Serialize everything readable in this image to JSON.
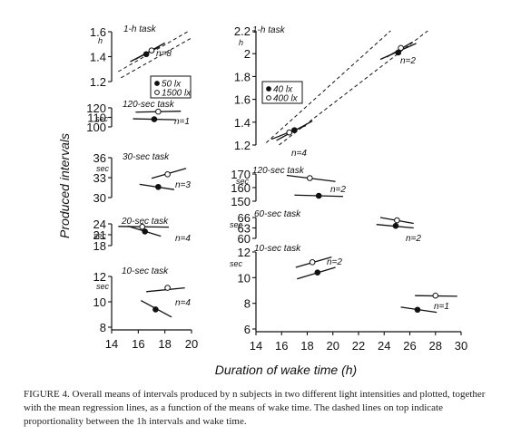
{
  "caption": "FIGURE 4. Overall means of intervals produced by n subjects in two different light intensities and plotted, together with the mean regression lines, as a function of the means of wake time. The dashed lines on top indicate proportionality between the 1h intervals and wake time.",
  "chart_data": {
    "type": "scatter",
    "ylabel": "Produced intervals",
    "xlabel": "Duration of wake time (h)",
    "colors": {
      "filled_marker": "#111111",
      "open_marker": "#ffffff",
      "line": "#111111"
    },
    "panels": [
      {
        "id": "left-1h",
        "label": "1-h task",
        "unit": "h",
        "n_label": "n=8",
        "xlim": [
          14,
          20
        ],
        "ylim": [
          1.2,
          1.6
        ],
        "yticks": [
          1.2,
          1.4,
          1.6
        ],
        "legend": [
          {
            "marker": "filled",
            "label": "50 lx"
          },
          {
            "marker": "open",
            "label": "1500 lx"
          }
        ],
        "series": [
          {
            "marker": "filled",
            "x": 16.6,
            "y": 1.42,
            "line": [
              [
                15.4,
                1.36
              ],
              [
                17.6,
                1.48
              ]
            ]
          },
          {
            "marker": "open",
            "x": 17.0,
            "y": 1.45,
            "line": [
              [
                15.8,
                1.38
              ],
              [
                18.0,
                1.51
              ]
            ]
          }
        ],
        "reference_lines": [
          [
            [
              14.5,
              1.28
            ],
            [
              19.7,
              1.6
            ]
          ],
          [
            [
              14.7,
              1.23
            ],
            [
              20.0,
              1.55
            ]
          ]
        ]
      },
      {
        "id": "left-120sec",
        "label": "120-sec task",
        "unit": "sec",
        "n_label": "n=1",
        "xlim": [
          14,
          20
        ],
        "ylim": [
          100,
          120
        ],
        "yticks": [
          100,
          110,
          120
        ],
        "series": [
          {
            "marker": "open",
            "x": 17.5,
            "y": 116,
            "line": [
              [
                15.8,
                115.5
              ],
              [
                19.2,
                116.5
              ]
            ]
          },
          {
            "marker": "filled",
            "x": 17.2,
            "y": 108,
            "line": [
              [
                15.6,
                108.5
              ],
              [
                18.8,
                107.5
              ]
            ]
          }
        ]
      },
      {
        "id": "left-30sec",
        "label": "30-sec task",
        "unit": "sec",
        "n_label": "n=3",
        "xlim": [
          14,
          20
        ],
        "ylim": [
          30,
          36
        ],
        "yticks": [
          30,
          33,
          36
        ],
        "series": [
          {
            "marker": "open",
            "x": 18.2,
            "y": 33.5,
            "line": [
              [
                17.0,
                32.9
              ],
              [
                19.6,
                34.4
              ]
            ]
          },
          {
            "marker": "filled",
            "x": 17.5,
            "y": 31.6,
            "line": [
              [
                16.1,
                32.0
              ],
              [
                18.7,
                31.2
              ]
            ]
          }
        ]
      },
      {
        "id": "left-20sec",
        "label": "20-sec task",
        "unit": "sec",
        "n_label": "n=4",
        "xlim": [
          14,
          20
        ],
        "ylim": [
          18,
          24
        ],
        "yticks": [
          18,
          21,
          24
        ],
        "series": [
          {
            "marker": "open",
            "x": 16.3,
            "y": 23.2,
            "line": [
              [
                14.5,
                23.3
              ],
              [
                18.3,
                23.1
              ]
            ]
          },
          {
            "marker": "filled",
            "x": 16.5,
            "y": 21.9,
            "line": [
              [
                15.2,
                23.4
              ],
              [
                17.7,
                20.6
              ]
            ]
          }
        ]
      },
      {
        "id": "left-10sec",
        "label": "10-sec task",
        "unit": "sec",
        "n_label": "n=4",
        "xlim": [
          14,
          20
        ],
        "ylim": [
          8,
          12
        ],
        "yticks": [
          8,
          10,
          12
        ],
        "series": [
          {
            "marker": "open",
            "x": 18.2,
            "y": 11.1,
            "line": [
              [
                16.6,
                10.8
              ],
              [
                19.5,
                11.1
              ]
            ]
          },
          {
            "marker": "filled",
            "x": 17.3,
            "y": 9.4,
            "line": [
              [
                16.2,
                10.1
              ],
              [
                18.5,
                8.8
              ]
            ]
          }
        ]
      },
      {
        "id": "right-1h",
        "label": "1-h task",
        "unit": "h",
        "n_label": "n=2",
        "xlim": [
          14,
          30
        ],
        "ylim": [
          1.2,
          2.2
        ],
        "yticks": [
          1.2,
          1.4,
          1.6,
          1.8,
          2.0,
          2.2
        ],
        "legend": [
          {
            "marker": "filled",
            "label": "40 lx"
          },
          {
            "marker": "open",
            "label": "400 lx"
          }
        ],
        "series": [
          {
            "marker": "filled",
            "x": 17.0,
            "y": 1.33,
            "line": [
              [
                15.6,
                1.24
              ],
              [
                18.4,
                1.41
              ]
            ]
          },
          {
            "marker": "open",
            "x": 16.6,
            "y": 1.31,
            "line": [
              [
                15.2,
                1.25
              ],
              [
                17.9,
                1.37
              ]
            ]
          },
          {
            "marker": "filled",
            "x": 25.1,
            "y": 2.01,
            "line": [
              [
                23.7,
                1.95
              ],
              [
                26.5,
                2.09
              ]
            ]
          },
          {
            "marker": "open",
            "x": 25.3,
            "y": 2.05,
            "line": [
              [
                24.2,
                1.97
              ],
              [
                26.2,
                2.1
              ]
            ]
          }
        ],
        "n_label_lower": "n=4",
        "reference_lines": [
          [
            [
              14.8,
              1.22
            ],
            [
              24.5,
              2.2
            ]
          ],
          [
            [
              15.8,
              1.2
            ],
            [
              27.4,
              2.2
            ]
          ]
        ]
      },
      {
        "id": "right-120sec",
        "label": "120-sec task",
        "unit": "sec",
        "n_label": "n=2",
        "xlim": [
          14,
          30
        ],
        "ylim": [
          150,
          170
        ],
        "yticks": [
          150,
          160,
          170
        ],
        "series": [
          {
            "marker": "open",
            "x": 18.2,
            "y": 167,
            "line": [
              [
                16.4,
                169
              ],
              [
                20.2,
                164.5
              ]
            ]
          },
          {
            "marker": "filled",
            "x": 18.9,
            "y": 154,
            "line": [
              [
                17.0,
                154.5
              ],
              [
                20.8,
                153.5
              ]
            ]
          }
        ]
      },
      {
        "id": "right-60sec",
        "label": "60-sec task",
        "unit": "sec",
        "n_label": "n=2",
        "xlim": [
          14,
          30
        ],
        "ylim": [
          60,
          66
        ],
        "yticks": [
          60,
          63,
          66
        ],
        "series": [
          {
            "marker": "open",
            "x": 25.0,
            "y": 65.2,
            "line": [
              [
                23.7,
                66.0
              ],
              [
                26.3,
                64.3
              ]
            ]
          },
          {
            "marker": "filled",
            "x": 24.9,
            "y": 63.6,
            "line": [
              [
                23.4,
                64.0
              ],
              [
                26.3,
                63.0
              ]
            ]
          }
        ]
      },
      {
        "id": "right-10sec",
        "label": "10-sec task",
        "unit": "sec",
        "n_label": "n=2",
        "xlim": [
          14,
          30
        ],
        "ylim": [
          6,
          12
        ],
        "yticks": [
          6,
          8,
          10,
          12
        ],
        "series": [
          {
            "marker": "open",
            "x": 18.4,
            "y": 11.2,
            "line": [
              [
                17.1,
                10.8
              ],
              [
                19.9,
                11.6
              ]
            ]
          },
          {
            "marker": "filled",
            "x": 18.8,
            "y": 10.4,
            "line": [
              [
                17.2,
                9.9
              ],
              [
                20.2,
                10.8
              ]
            ]
          },
          {
            "marker": "open",
            "x": 28.0,
            "y": 8.6,
            "line": [
              [
                26.4,
                8.6
              ],
              [
                29.7,
                8.55
              ]
            ]
          },
          {
            "marker": "filled",
            "x": 26.6,
            "y": 7.5,
            "line": [
              [
                25.3,
                7.7
              ],
              [
                28.1,
                7.3
              ]
            ]
          }
        ],
        "n_label_second": "n=1"
      }
    ],
    "x_axes": [
      {
        "panel": "left-10sec",
        "ticks": [
          14,
          16,
          18,
          20
        ]
      },
      {
        "panel": "right-10sec",
        "ticks": [
          14,
          16,
          18,
          20,
          22,
          24,
          26,
          28,
          30
        ]
      }
    ]
  }
}
